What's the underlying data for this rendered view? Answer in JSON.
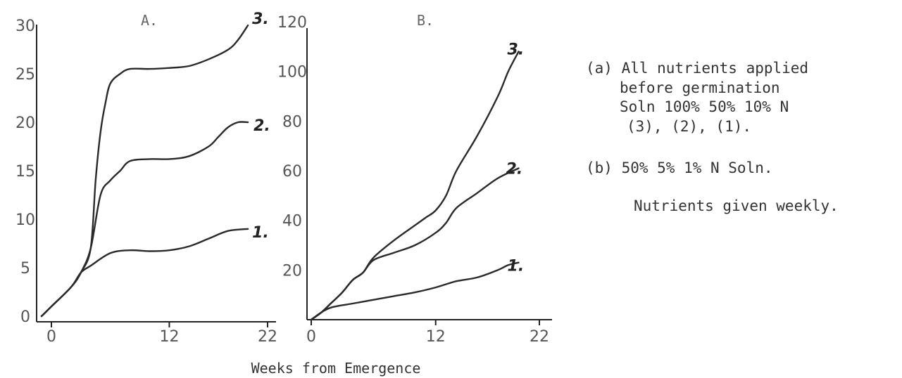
{
  "chart_data": [
    {
      "type": "line",
      "title": "A.",
      "xlabel": "Weeks from Emergence",
      "ylabel": "",
      "xlim": [
        0,
        22
      ],
      "ylim": [
        0,
        30
      ],
      "xticks": [
        "0",
        "12",
        "22"
      ],
      "yticks": [
        "0",
        "5",
        "10",
        "15",
        "20",
        "25",
        "30"
      ],
      "series": [
        {
          "name": "1.",
          "x": [
            -1,
            0,
            2,
            3,
            4,
            6,
            8,
            10,
            12,
            14,
            16,
            18,
            20
          ],
          "values": [
            0,
            1,
            3,
            4.5,
            5.2,
            6.5,
            6.8,
            6.7,
            6.8,
            7.2,
            8,
            8.8,
            9
          ]
        },
        {
          "name": "2.",
          "x": [
            -1,
            0,
            2,
            3,
            4,
            5,
            6,
            7,
            8,
            10,
            12,
            14,
            16,
            17,
            18,
            19,
            20
          ],
          "values": [
            0,
            1,
            3,
            4.5,
            7,
            12.5,
            14,
            15,
            16,
            16.2,
            16.2,
            16.5,
            17.5,
            18.5,
            19.5,
            20,
            20
          ]
        },
        {
          "name": "3.",
          "x": [
            -1,
            0,
            2,
            3,
            4,
            4.5,
            5,
            5.5,
            6,
            7,
            8,
            10,
            12,
            14,
            16,
            18,
            19,
            20
          ],
          "values": [
            0,
            1,
            3,
            4.5,
            7,
            14,
            19,
            22,
            24,
            25,
            25.5,
            25.5,
            25.6,
            25.8,
            26.5,
            27.5,
            28.5,
            30
          ]
        }
      ]
    },
    {
      "type": "line",
      "title": "B.",
      "xlabel": "Weeks from Emergence",
      "ylabel": "",
      "xlim": [
        0,
        22
      ],
      "ylim": [
        0,
        120
      ],
      "xticks": [
        "0",
        "12",
        "22"
      ],
      "yticks": [
        "20",
        "40",
        "60",
        "80",
        "100",
        "120"
      ],
      "series": [
        {
          "name": "1.",
          "x": [
            0,
            1,
            2,
            4,
            6,
            8,
            10,
            12,
            14,
            16,
            18,
            19,
            20
          ],
          "values": [
            0,
            3,
            5,
            6.5,
            8,
            9.5,
            11,
            13,
            15.5,
            17,
            20,
            22,
            23
          ]
        },
        {
          "name": "2.",
          "x": [
            0,
            1,
            2,
            3,
            4,
            5,
            6,
            8,
            10,
            12,
            13,
            14,
            16,
            18,
            20
          ],
          "values": [
            0,
            3,
            7,
            11,
            16,
            19,
            24,
            27,
            30,
            35,
            39,
            45,
            51,
            57,
            61
          ]
        },
        {
          "name": "3.",
          "x": [
            0,
            1,
            2,
            3,
            4,
            5,
            6,
            8,
            10,
            11,
            12,
            13,
            14,
            16,
            18,
            19,
            20
          ],
          "values": [
            0,
            3,
            7,
            11,
            16,
            19,
            25,
            32,
            38,
            41,
            44,
            50,
            60,
            74,
            90,
            100,
            108
          ]
        }
      ]
    }
  ],
  "notes": {
    "a_line1": "(a) All nutrients applied",
    "a_line2": "before germination",
    "a_line3": "Soln 100% 50% 10% N",
    "a_line4": "(3), (2), (1).",
    "b_line1": "(b) 50%  5%  1%  N Soln.",
    "b_line2": "Nutrients given weekly."
  }
}
